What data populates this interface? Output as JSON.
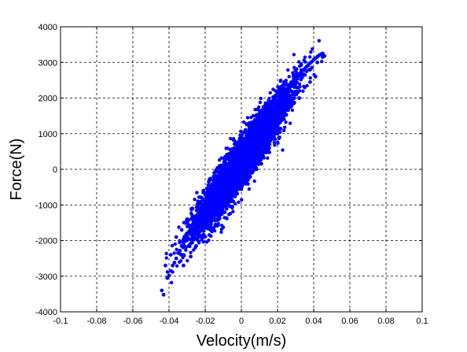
{
  "chart_data": {
    "type": "scatter",
    "title": "",
    "xlabel": "Velocity(m/s)",
    "ylabel": "Force(N)",
    "xlim": [
      -0.1,
      0.1
    ],
    "ylim": [
      -4000,
      4000
    ],
    "grid": true,
    "marker_color": "#0000ff",
    "x_ticks": [
      -0.1,
      -0.08,
      -0.06,
      -0.04,
      -0.02,
      0,
      0.02,
      0.04,
      0.06,
      0.08,
      0.1
    ],
    "x_tick_labels": [
      "-0.1",
      "-0.08",
      "-0.06",
      "-0.04",
      "-0.02",
      "0",
      "0.02",
      "0.04",
      "0.06",
      "0.08",
      "0.1"
    ],
    "y_ticks": [
      -4000,
      -3000,
      -2000,
      -1000,
      0,
      1000,
      2000,
      3000,
      4000
    ],
    "y_tick_labels": [
      "-4000",
      "-3000",
      "-2000",
      "-1000",
      "0",
      "1000",
      "2000",
      "3000",
      "4000"
    ],
    "series": [
      {
        "x": [
          -0.044,
          -0.043,
          -0.041,
          -0.04,
          -0.039,
          -0.038,
          -0.037,
          -0.036,
          -0.035,
          -0.034,
          -0.033,
          -0.032,
          -0.031,
          -0.03,
          -0.029,
          -0.028,
          -0.027,
          -0.026,
          -0.025,
          -0.024,
          -0.023,
          -0.022,
          -0.021,
          -0.02,
          -0.019,
          -0.018,
          -0.017,
          -0.016,
          -0.015,
          -0.014,
          -0.013,
          -0.012,
          -0.011,
          -0.01,
          -0.009,
          -0.008,
          -0.007,
          -0.006,
          -0.005,
          -0.004,
          -0.003,
          -0.002,
          -0.001,
          0.0,
          0.001,
          0.002,
          0.003,
          0.004,
          0.005,
          0.006,
          0.007,
          0.008,
          0.009,
          0.01,
          0.011,
          0.012,
          0.013,
          0.014,
          0.015,
          0.016,
          0.017,
          0.018,
          0.019,
          0.02,
          0.021,
          0.022,
          0.023,
          0.024,
          0.025,
          0.026,
          0.027,
          0.028,
          0.029,
          0.03,
          0.031,
          0.032,
          0.033,
          0.034,
          0.035,
          0.036,
          0.037,
          0.038,
          0.039,
          0.04,
          0.041,
          0.042,
          0.043,
          0.044,
          0.045,
          0.046,
          -0.042,
          -0.039,
          -0.036,
          -0.033,
          -0.03,
          -0.027,
          -0.024,
          -0.021,
          -0.018,
          -0.015,
          -0.012,
          -0.009,
          -0.006,
          -0.003,
          0.0,
          0.003,
          0.006,
          0.009,
          0.012,
          0.015,
          0.018,
          0.021,
          0.024,
          0.027,
          0.03,
          0.033,
          0.036,
          0.039,
          0.042,
          0.045,
          -0.032,
          -0.028,
          -0.025,
          -0.022,
          -0.019,
          -0.016,
          -0.013,
          -0.01,
          -0.007,
          -0.004,
          -0.001,
          0.002,
          0.005,
          0.008,
          0.011,
          0.014,
          0.017,
          0.02,
          0.023,
          0.026,
          0.029,
          0.032,
          0.035,
          0.038,
          0.041,
          -0.026,
          -0.023,
          -0.02,
          -0.017,
          -0.014,
          -0.011,
          -0.008,
          -0.005,
          -0.002,
          0.001,
          0.004,
          0.007,
          0.01,
          0.013,
          0.016,
          0.019,
          0.022,
          0.025,
          0.028,
          0.031,
          -0.022,
          -0.018,
          -0.014,
          -0.01,
          -0.006,
          -0.002,
          0.002,
          0.006,
          0.01,
          0.014,
          0.018,
          0.022,
          -0.016,
          -0.012,
          -0.008,
          -0.004,
          0.0,
          0.004,
          0.008,
          0.012,
          0.016,
          0.02
        ],
        "y": [
          -3400,
          -3520,
          -3050,
          -2980,
          -2850,
          -2700,
          -2620,
          -2500,
          -2350,
          -2280,
          -2150,
          -2050,
          -1980,
          -1850,
          -1750,
          -1650,
          -1550,
          -1480,
          -1380,
          -1280,
          -1180,
          -1080,
          -980,
          -900,
          -820,
          -720,
          -640,
          -560,
          -480,
          -400,
          -330,
          -250,
          -170,
          -90,
          -20,
          60,
          130,
          200,
          270,
          340,
          420,
          490,
          560,
          620,
          690,
          760,
          830,
          900,
          960,
          1020,
          1100,
          1160,
          1220,
          1290,
          1350,
          1420,
          1480,
          1540,
          1600,
          1660,
          1720,
          1790,
          1860,
          1920,
          1980,
          2050,
          2110,
          2180,
          2240,
          2300,
          2360,
          2420,
          2480,
          2540,
          2600,
          2660,
          2720,
          2780,
          2820,
          2880,
          2920,
          2980,
          3020,
          3080,
          3120,
          3160,
          3200,
          3230,
          3250,
          3180,
          -2700,
          -2400,
          -1900,
          -1700,
          -1400,
          -1100,
          -900,
          -600,
          -350,
          -100,
          100,
          350,
          550,
          750,
          900,
          1050,
          1200,
          1300,
          1450,
          1600,
          1750,
          1900,
          2100,
          2200,
          2450,
          2600,
          2750,
          2850,
          3000,
          3150,
          -2700,
          -2450,
          -2150,
          -1900,
          -1600,
          -1300,
          -1000,
          -750,
          -500,
          -250,
          -50,
          150,
          350,
          550,
          800,
          1000,
          1150,
          1350,
          1550,
          1700,
          1850,
          2000,
          2300,
          2450,
          2600,
          -1900,
          -1650,
          -1350,
          -1100,
          -850,
          -600,
          -300,
          -50,
          150,
          400,
          600,
          850,
          1000,
          1250,
          1400,
          1550,
          1750,
          1900,
          2000,
          2150,
          -800,
          -650,
          -350,
          -50,
          200,
          400,
          600,
          850,
          1050,
          1150,
          1250,
          1400,
          -1350,
          -1050,
          -750,
          -450,
          -200,
          100,
          350,
          550,
          800,
          1000
        ]
      }
    ]
  }
}
